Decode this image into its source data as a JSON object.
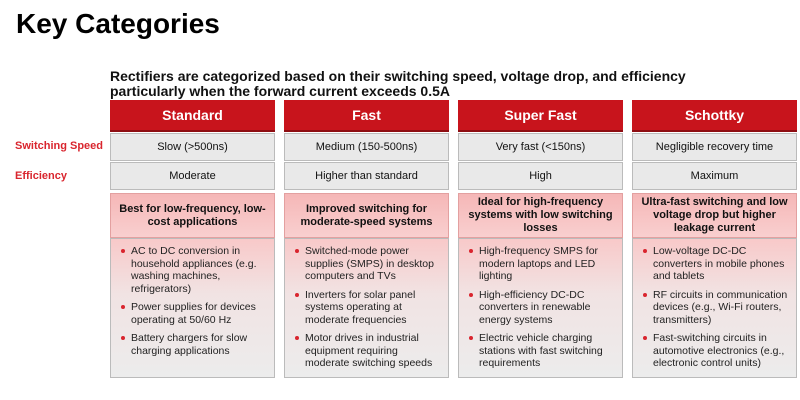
{
  "title": "Key Categories",
  "subtitle": [
    "Rectifiers are categorized based on their switching speed, voltage drop, and efficiency",
    "particularly when the forward current exceeds 0.5A"
  ],
  "row_labels": [
    "Switching Speed",
    "Efficiency"
  ],
  "columns": [
    {
      "name": "Standard",
      "speed": "Slow (>500ns)",
      "efficiency": "Moderate",
      "highlight": "Best for low-frequency, low-cost applications",
      "uses": [
        "AC to DC conversion in household appliances (e.g. washing machines, refrigerators)",
        "Power supplies for devices operating at 50/60 Hz",
        "Battery chargers for slow charging applications"
      ]
    },
    {
      "name": "Fast",
      "speed": "Medium (150-500ns)",
      "efficiency": "Higher than standard",
      "highlight": "Improved switching for moderate-speed systems",
      "uses": [
        "Switched-mode power supplies (SMPS) in desktop computers and TVs",
        "Inverters for solar panel systems operating at moderate frequencies",
        "Motor drives in industrial equipment requiring moderate switching speeds"
      ]
    },
    {
      "name": "Super Fast",
      "speed": "Very fast (<150ns)",
      "efficiency": "High",
      "highlight": "Ideal for high-frequency systems with low switching losses",
      "uses": [
        "High-frequency SMPS for modern laptops and LED lighting",
        "High-efficiency DC-DC converters in renewable energy systems",
        "Electric vehicle charging stations with fast switching requirements"
      ]
    },
    {
      "name": "Schottky",
      "speed": "Negligible recovery time",
      "efficiency": "Maximum",
      "highlight": "Ultra-fast switching and low voltage drop but higher leakage current",
      "uses": [
        "Low-voltage DC-DC converters in mobile phones and tablets",
        "RF circuits in communication devices (e.g., Wi-Fi routers, transmitters)",
        "Fast-switching circuits in automotive electronics (e.g., electronic control units)"
      ]
    }
  ]
}
